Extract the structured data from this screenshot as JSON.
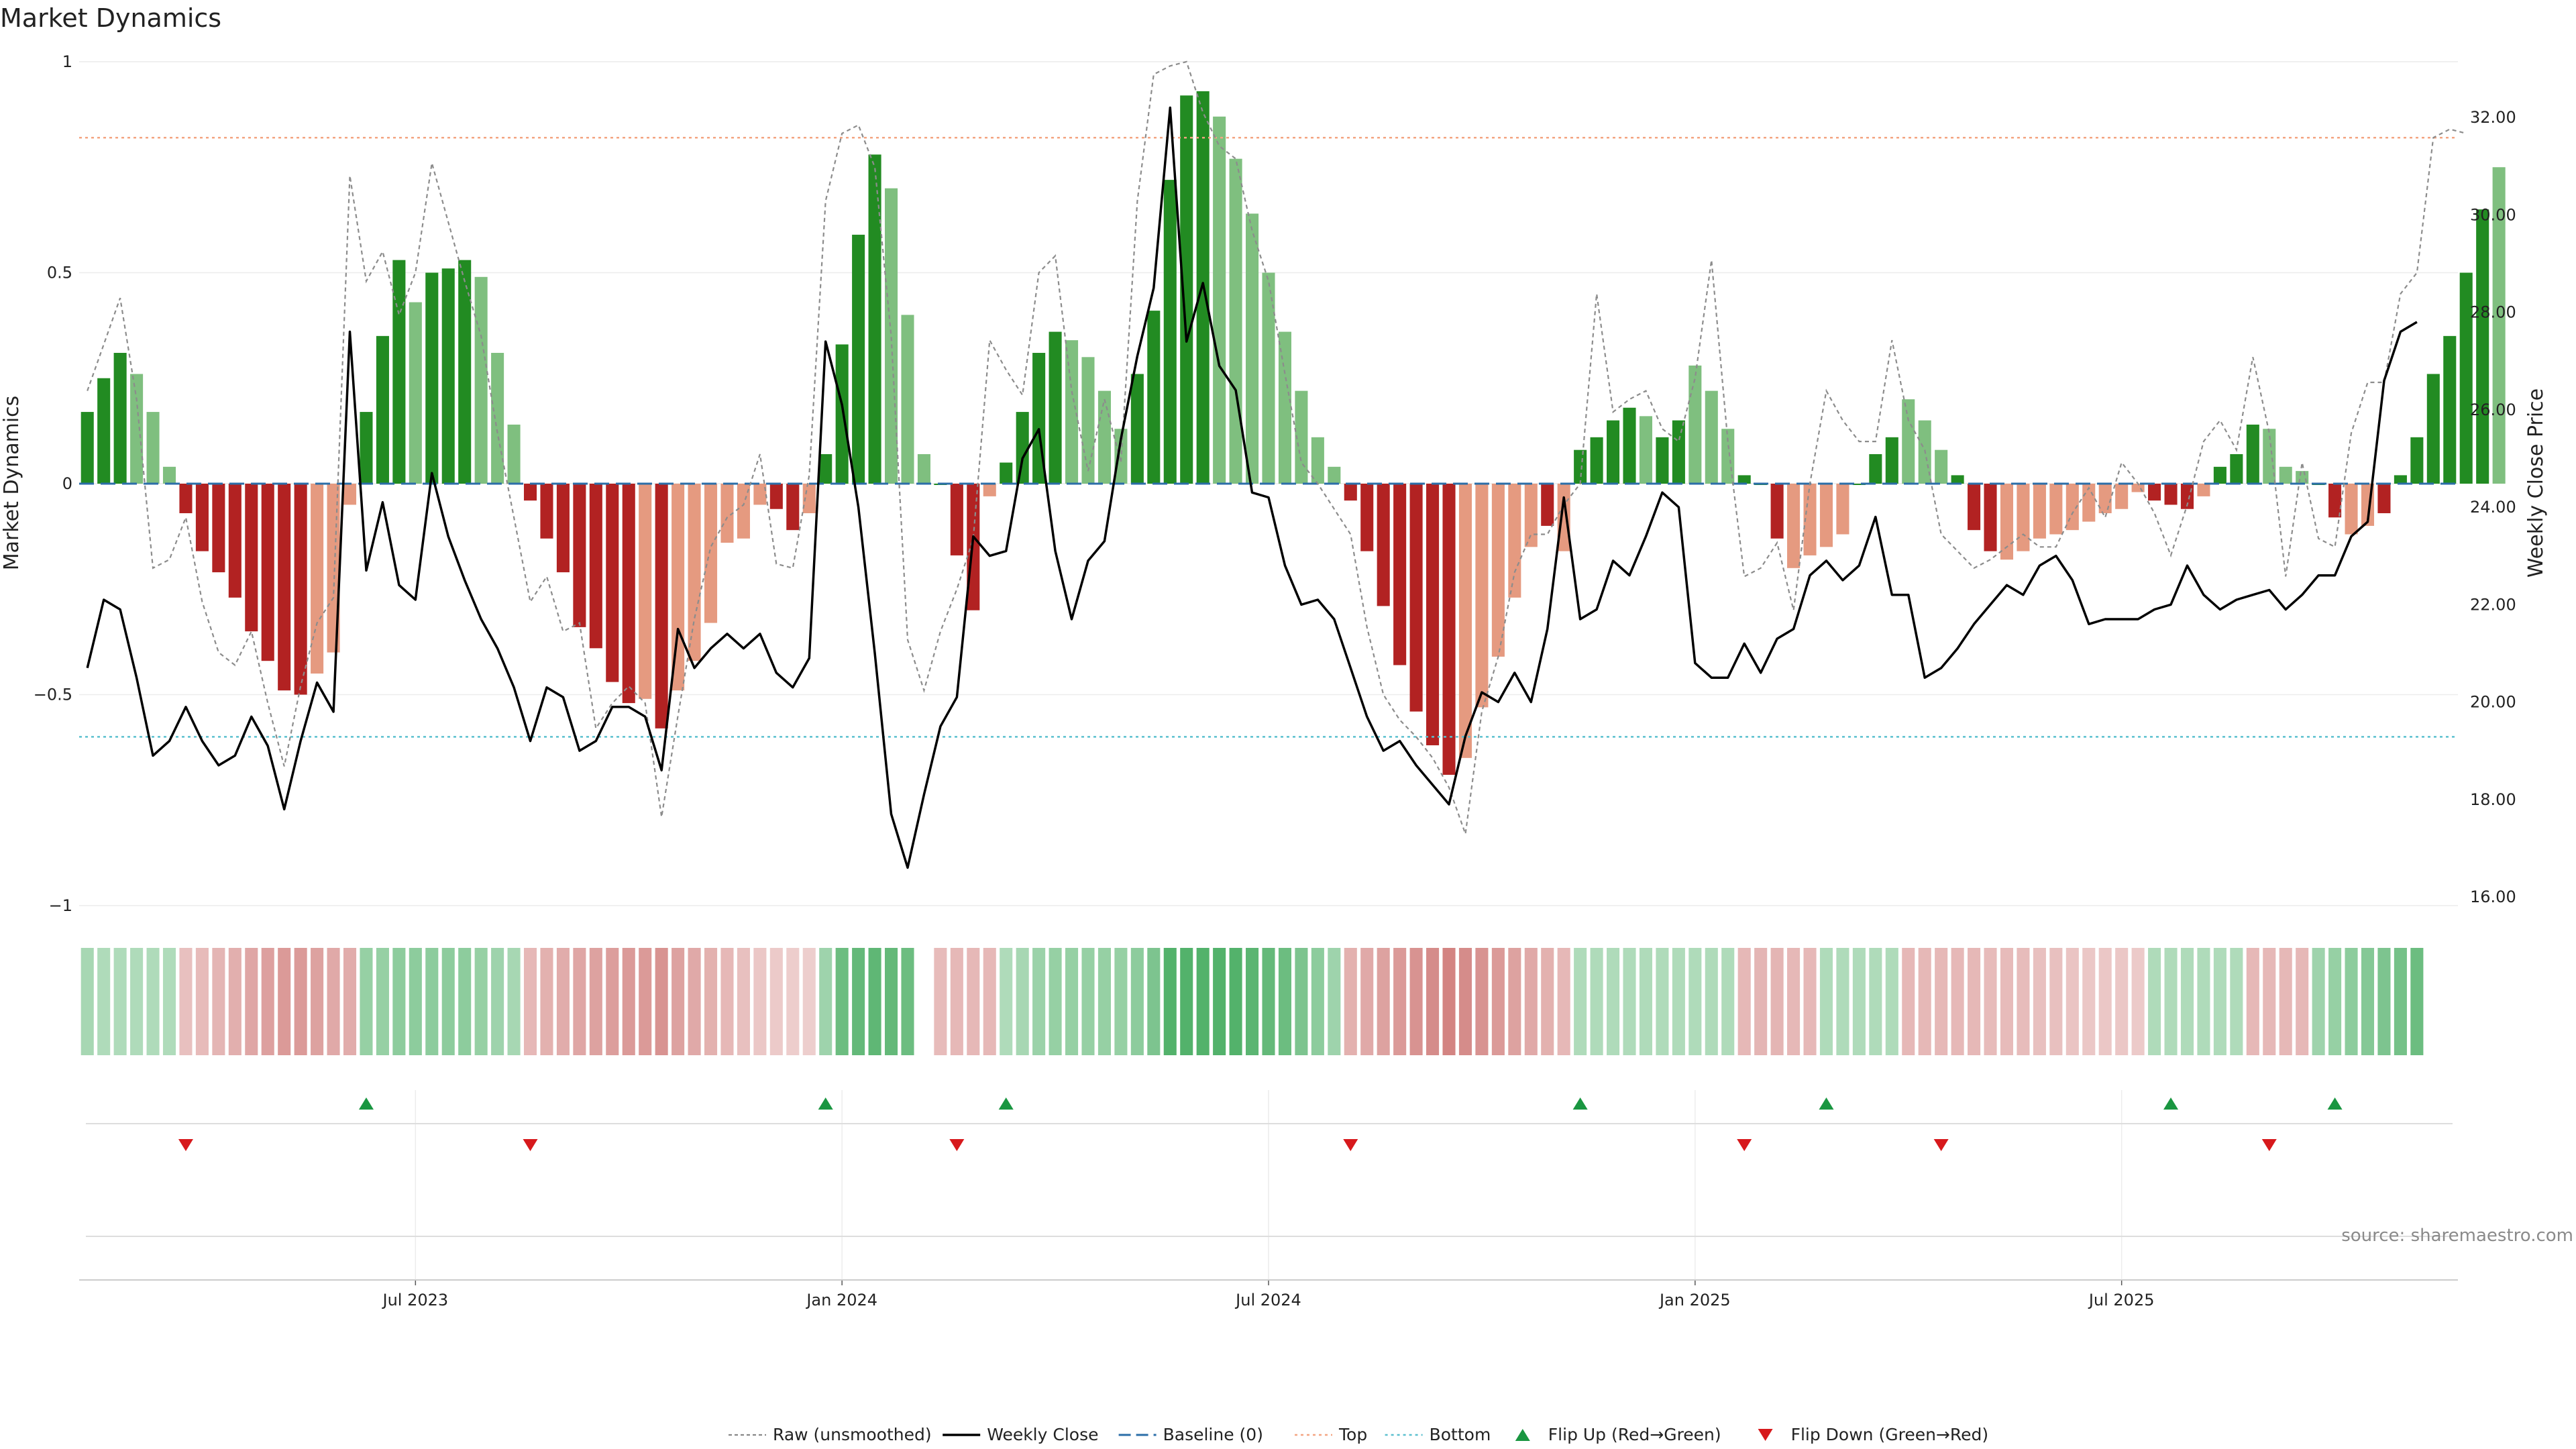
{
  "title": "Market Dynamics",
  "source": "source: sharemaestro.com",
  "chart_data": {
    "type": "bar",
    "title": "Market Dynamics",
    "ylabel_left": "Market Dynamics",
    "ylabel_right": "Weekly Close Price",
    "ylim_left": [
      -1,
      1
    ],
    "ylim_right": [
      15.6,
      33.4
    ],
    "left_ticks": [
      {
        "v": 1,
        "label": "1"
      },
      {
        "v": 0.5,
        "label": "0.5"
      },
      {
        "v": 0,
        "label": "0"
      },
      {
        "v": -0.5,
        "label": "−0.5"
      },
      {
        "v": -1,
        "label": "−1"
      }
    ],
    "right_ticks": [
      {
        "v": 32,
        "label": "32.00"
      },
      {
        "v": 30,
        "label": "30.00"
      },
      {
        "v": 28,
        "label": "28.00"
      },
      {
        "v": 26,
        "label": "26.00"
      },
      {
        "v": 24,
        "label": "24.00"
      },
      {
        "v": 22,
        "label": "22.00"
      },
      {
        "v": 20,
        "label": "20.00"
      },
      {
        "v": 18,
        "label": "18.00"
      },
      {
        "v": 16,
        "label": "16.00"
      }
    ],
    "x_ticks": [
      {
        "week": 20,
        "label": "Jul 2023"
      },
      {
        "week": 46,
        "label": "Jan 2024"
      },
      {
        "week": 72,
        "label": "Jul 2024"
      },
      {
        "week": 98,
        "label": "Jan 2025"
      },
      {
        "week": 124,
        "label": "Jul 2025"
      }
    ],
    "n_weeks": 145,
    "top_line": 0.82,
    "bottom_line": -0.6,
    "bars": [
      0.17,
      0.25,
      0.31,
      0.26,
      0.17,
      0.04,
      -0.07,
      -0.16,
      -0.21,
      -0.27,
      -0.35,
      -0.42,
      -0.49,
      -0.5,
      -0.45,
      -0.4,
      -0.05,
      0.17,
      0.35,
      0.53,
      0.43,
      0.5,
      0.51,
      0.53,
      0.49,
      0.31,
      0.14,
      -0.04,
      -0.13,
      -0.21,
      -0.34,
      -0.39,
      -0.47,
      -0.52,
      -0.51,
      -0.58,
      -0.49,
      -0.42,
      -0.33,
      -0.14,
      -0.13,
      -0.05,
      -0.06,
      -0.11,
      -0.07,
      0.07,
      0.33,
      0.59,
      0.78,
      0.7,
      0.4,
      0.07,
      0.0,
      -0.17,
      -0.3,
      -0.03,
      0.05,
      0.17,
      0.31,
      0.36,
      0.34,
      0.3,
      0.22,
      0.13,
      0.26,
      0.41,
      0.72,
      0.92,
      0.93,
      0.87,
      0.77,
      0.64,
      0.5,
      0.36,
      0.22,
      0.11,
      0.04,
      -0.04,
      -0.16,
      -0.29,
      -0.43,
      -0.54,
      -0.62,
      -0.69,
      -0.65,
      -0.53,
      -0.41,
      -0.27,
      -0.15,
      -0.1,
      -0.16,
      0.08,
      0.11,
      0.15,
      0.18,
      0.16,
      0.11,
      0.15,
      0.28,
      0.22,
      0.13,
      0.02,
      0.0,
      -0.13,
      -0.2,
      -0.17,
      -0.15,
      -0.12,
      0.0,
      0.07,
      0.11,
      0.2,
      0.15,
      0.08,
      0.02,
      -0.11,
      -0.16,
      -0.18,
      -0.16,
      -0.13,
      -0.12,
      -0.11,
      -0.09,
      -0.07,
      -0.06,
      -0.02,
      -0.04,
      -0.05,
      -0.06,
      -0.03,
      0.04,
      0.07,
      0.14,
      0.13,
      0.04,
      0.03,
      0.0,
      -0.08,
      -0.12,
      -0.1,
      -0.07,
      0.02,
      0.11,
      0.26,
      0.35,
      0.5,
      0.65,
      0.75
    ],
    "bar_alpha": [
      1,
      1,
      1,
      0.6,
      0.6,
      0.6,
      1,
      1,
      1,
      1,
      1,
      1,
      1,
      1,
      0.6,
      0.6,
      0.6,
      1,
      1,
      1,
      0.6,
      1,
      1,
      1,
      0.6,
      0.6,
      0.6,
      1,
      1,
      1,
      1,
      1,
      1,
      1,
      0.6,
      1,
      0.6,
      0.6,
      0.6,
      0.6,
      0.6,
      0.6,
      1,
      1,
      0.6,
      1,
      1,
      1,
      1,
      0.6,
      0.6,
      0.6,
      1,
      1,
      1,
      0.6,
      1,
      1,
      1,
      1,
      0.6,
      0.6,
      0.6,
      0.6,
      1,
      1,
      1,
      1,
      1,
      0.6,
      0.6,
      0.6,
      0.6,
      0.6,
      0.6,
      0.6,
      0.6,
      1,
      1,
      1,
      1,
      1,
      1,
      1,
      0.6,
      0.6,
      0.6,
      0.6,
      0.6,
      1,
      0.6,
      1,
      1,
      1,
      1,
      0.6,
      1,
      1,
      0.6,
      0.6,
      0.6,
      1,
      1,
      1,
      0.6,
      0.6,
      0.6,
      0.6,
      1,
      1,
      1,
      0.6,
      0.6,
      0.6,
      1,
      1,
      1,
      0.6,
      0.6,
      0.6,
      0.6,
      0.6,
      0.6,
      0.6,
      0.6,
      0.6,
      1,
      1,
      1,
      0.6,
      1,
      1,
      1,
      0.6,
      0.6,
      0.6,
      1,
      1,
      0.6,
      0.6,
      1,
      1,
      1,
      1,
      1,
      1,
      1
    ],
    "raw": [
      0.22,
      0.33,
      0.44,
      0.2,
      -0.2,
      -0.18,
      -0.08,
      -0.28,
      -0.4,
      -0.43,
      -0.35,
      -0.52,
      -0.67,
      -0.48,
      -0.33,
      -0.27,
      0.73,
      0.48,
      0.55,
      0.4,
      0.5,
      0.76,
      0.62,
      0.48,
      0.35,
      0.12,
      -0.08,
      -0.28,
      -0.22,
      -0.35,
      -0.33,
      -0.58,
      -0.52,
      -0.48,
      -0.52,
      -0.79,
      -0.55,
      -0.32,
      -0.15,
      -0.08,
      -0.05,
      0.07,
      -0.19,
      -0.2,
      0.02,
      0.67,
      0.83,
      0.85,
      0.75,
      0.35,
      -0.37,
      -0.49,
      -0.35,
      -0.25,
      -0.13,
      0.34,
      0.27,
      0.21,
      0.5,
      0.54,
      0.22,
      0.03,
      0.2,
      0.05,
      0.67,
      0.97,
      0.99,
      1.0,
      0.88,
      0.8,
      0.77,
      0.6,
      0.48,
      0.26,
      0.05,
      0.0,
      -0.06,
      -0.12,
      -0.34,
      -0.5,
      -0.56,
      -0.6,
      -0.65,
      -0.72,
      -0.83,
      -0.54,
      -0.41,
      -0.21,
      -0.12,
      -0.12,
      -0.05,
      0.0,
      0.45,
      0.17,
      0.2,
      0.22,
      0.13,
      0.1,
      0.25,
      0.53,
      0.1,
      -0.22,
      -0.2,
      -0.14,
      -0.3,
      0.0,
      0.22,
      0.15,
      0.1,
      0.1,
      0.34,
      0.15,
      0.08,
      -0.12,
      -0.16,
      -0.2,
      -0.18,
      -0.15,
      -0.12,
      -0.15,
      -0.15,
      -0.07,
      -0.01,
      -0.08,
      0.05,
      0.0,
      -0.07,
      -0.17,
      -0.05,
      0.1,
      0.15,
      0.08,
      0.3,
      0.12,
      -0.22,
      0.05,
      -0.13,
      -0.15,
      0.12,
      0.24,
      0.24,
      0.45,
      0.5,
      0.82,
      0.84,
      0.83
    ],
    "close": [
      20.7,
      22.1,
      21.9,
      20.5,
      18.9,
      19.2,
      19.9,
      19.2,
      18.7,
      18.9,
      19.7,
      19.1,
      17.8,
      19.2,
      20.4,
      19.8,
      27.6,
      22.7,
      24.1,
      22.4,
      22.1,
      24.7,
      23.4,
      22.5,
      21.7,
      21.1,
      20.3,
      19.2,
      20.3,
      20.1,
      19.0,
      19.2,
      19.9,
      19.9,
      19.7,
      18.6,
      21.5,
      20.7,
      21.1,
      21.4,
      21.1,
      21.4,
      20.6,
      20.3,
      20.9,
      27.4,
      26.1,
      24.0,
      21.0,
      17.7,
      16.6,
      18.1,
      19.5,
      20.1,
      23.4,
      23.0,
      23.1,
      25.0,
      25.6,
      23.1,
      21.7,
      22.9,
      23.3,
      25.4,
      27.1,
      28.5,
      32.2,
      27.4,
      28.6,
      26.9,
      26.4,
      24.3,
      24.2,
      22.8,
      22.0,
      22.1,
      21.7,
      20.7,
      19.7,
      19.0,
      19.2,
      18.7,
      18.3,
      17.9,
      19.3,
      20.2,
      20.0,
      20.6,
      20.0,
      21.5,
      24.2,
      21.7,
      21.9,
      22.9,
      22.6,
      23.4,
      24.3,
      24.0,
      20.8,
      20.5,
      20.5,
      21.2,
      20.6,
      21.3,
      21.5,
      22.6,
      22.9,
      22.5,
      22.8,
      23.8,
      22.2,
      22.2,
      20.5,
      20.7,
      21.1,
      21.6,
      22.0,
      22.4,
      22.2,
      22.8,
      23.0,
      22.5,
      21.6,
      21.7,
      21.7,
      21.7,
      21.9,
      22.0,
      22.8,
      22.2,
      21.9,
      22.1,
      22.2,
      22.3,
      21.9,
      22.2,
      22.6,
      22.6,
      23.4,
      23.7,
      26.6,
      27.6,
      27.8
    ],
    "regime_band": [
      0.35,
      0.3,
      0.3,
      0.3,
      0.3,
      0.3,
      -0.25,
      -0.28,
      -0.32,
      -0.36,
      -0.42,
      -0.46,
      -0.5,
      -0.5,
      -0.45,
      -0.4,
      -0.38,
      0.45,
      0.45,
      0.5,
      0.5,
      0.5,
      0.5,
      0.5,
      0.45,
      0.4,
      0.35,
      -0.3,
      -0.35,
      -0.38,
      -0.42,
      -0.45,
      -0.48,
      -0.5,
      -0.5,
      -0.55,
      -0.45,
      -0.4,
      -0.35,
      -0.3,
      -0.25,
      -0.2,
      -0.18,
      -0.16,
      -0.15,
      0.4,
      0.7,
      0.75,
      0.78,
      0.75,
      0.7,
      null,
      -0.28,
      -0.3,
      -0.3,
      -0.3,
      0.3,
      0.35,
      0.42,
      0.45,
      0.45,
      0.45,
      0.45,
      0.45,
      0.5,
      0.6,
      0.85,
      0.85,
      0.85,
      0.85,
      0.85,
      0.8,
      0.75,
      0.7,
      0.6,
      0.5,
      0.4,
      -0.35,
      -0.4,
      -0.45,
      -0.5,
      -0.55,
      -0.6,
      -0.65,
      -0.6,
      -0.55,
      -0.5,
      -0.45,
      -0.4,
      -0.35,
      -0.3,
      0.3,
      0.3,
      0.3,
      0.3,
      0.3,
      0.3,
      0.3,
      0.3,
      0.3,
      0.3,
      -0.3,
      -0.32,
      -0.32,
      -0.3,
      -0.3,
      0.3,
      0.3,
      0.3,
      0.3,
      0.3,
      -0.3,
      -0.3,
      -0.3,
      -0.3,
      -0.3,
      -0.28,
      -0.28,
      -0.27,
      -0.25,
      -0.25,
      -0.22,
      -0.2,
      -0.2,
      -0.2,
      -0.18,
      0.3,
      0.3,
      0.3,
      0.3,
      0.3,
      0.3,
      -0.3,
      -0.3,
      -0.3,
      -0.3,
      0.4,
      0.45,
      0.5,
      0.55,
      0.6,
      0.65,
      0.7
    ],
    "flip_up_weeks": [
      17,
      45,
      56,
      91,
      106,
      127,
      137
    ],
    "flip_down_weeks": [
      6,
      27,
      53,
      77,
      101,
      113,
      133
    ],
    "legend": [
      {
        "key": "raw",
        "label": "Raw (unsmoothed)",
        "color": "#888888"
      },
      {
        "key": "close",
        "label": "Weekly Close",
        "color": "#000000"
      },
      {
        "key": "baseline",
        "label": "Baseline (0)",
        "color": "#2b6ea8"
      },
      {
        "key": "top",
        "label": "Top",
        "color": "#f4a582"
      },
      {
        "key": "bottom",
        "label": "Bottom",
        "color": "#5bc0cf"
      },
      {
        "key": "flip-up",
        "label": "Flip Up (Red→Green)",
        "color": "#1a9641"
      },
      {
        "key": "flip-down",
        "label": "Flip Down (Green→Red)",
        "color": "#d7191c"
      }
    ],
    "colors": {
      "bull_strong": "#228b22",
      "bull_weak": "#7fbf7f",
      "bear_strong": "#b22222",
      "bear_weak": "#e59a80",
      "band_green": "#3aa655",
      "band_red": "#c0504d"
    }
  }
}
